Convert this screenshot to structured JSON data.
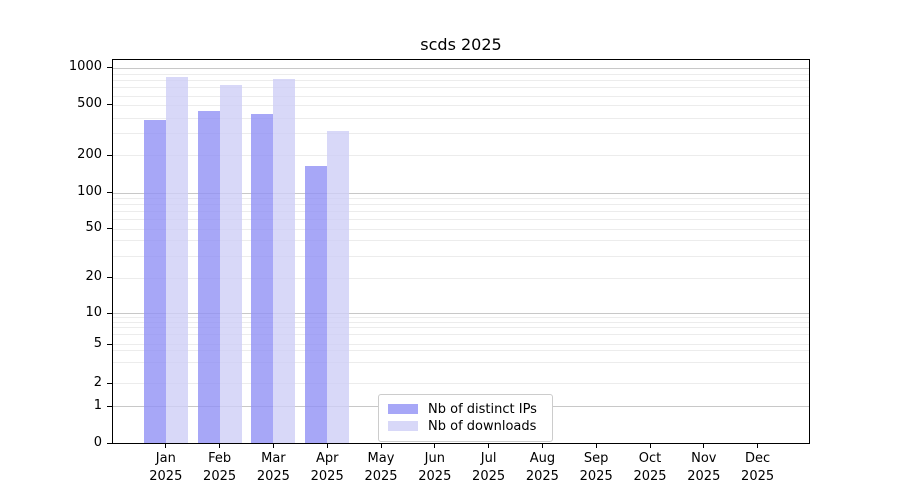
{
  "chart_data": {
    "type": "bar",
    "title": "scds 2025",
    "year_label": "2025",
    "months": [
      "Jan",
      "Feb",
      "Mar",
      "Apr",
      "May",
      "Jun",
      "Jul",
      "Aug",
      "Sep",
      "Oct",
      "Nov",
      "Dec"
    ],
    "yscale": "symlog",
    "ylim": [
      0,
      1000
    ],
    "yticks": [
      0,
      1,
      2,
      5,
      10,
      20,
      50,
      100,
      200,
      500,
      1000
    ],
    "grid": true,
    "legend_position": "lower-center-inside",
    "bar_alpha": 0.8,
    "series": [
      {
        "name": "Nb of distinct IPs",
        "color": "#9191f5",
        "values": [
          380,
          450,
          430,
          163,
          null,
          null,
          null,
          null,
          null,
          null,
          null,
          null
        ]
      },
      {
        "name": "Nb of downloads",
        "color": "#cecef6",
        "values": [
          840,
          730,
          815,
          313,
          null,
          null,
          null,
          null,
          null,
          null,
          null,
          null
        ]
      }
    ],
    "colors": {
      "major_gridline": "#c8c8c8",
      "minor_gridline": "#ececec",
      "axis": "#000000",
      "background": "#ffffff"
    }
  }
}
